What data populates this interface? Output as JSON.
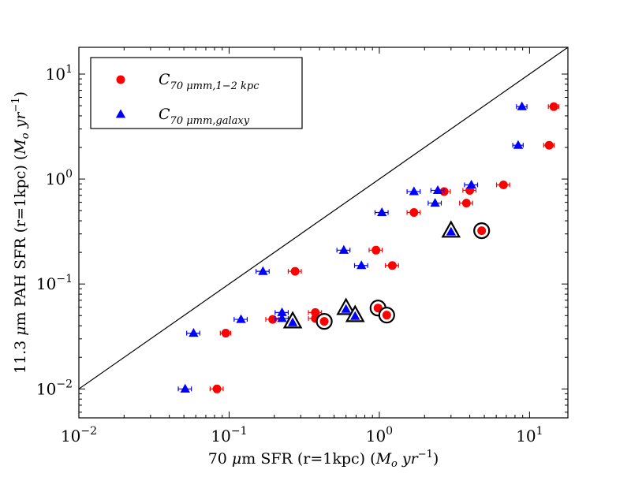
{
  "chart_data": {
    "type": "scatter",
    "xscale": "log",
    "yscale": "log",
    "xlim": [
      0.01,
      18
    ],
    "ylim": [
      0.0053,
      18
    ],
    "xlabel": {
      "pre": "70 ",
      "mu": "μ",
      "post": "m SFR (r=1kpc) (",
      "units": "M",
      "units_sub": "o",
      "units_mid": " yr",
      "units_sup": "−1",
      "close": ")"
    },
    "ylabel": {
      "pre": "11.3 ",
      "mu": "μ",
      "post": "m PAH SFR (r=1kpc) (",
      "units": "M",
      "units_sub": "o",
      "units_mid": " yr",
      "units_sup": "−1",
      "close": ")"
    },
    "x_ticks": [
      {
        "value": 0.01,
        "base": "10",
        "exp": "−2"
      },
      {
        "value": 0.1,
        "base": "10",
        "exp": "−1"
      },
      {
        "value": 1,
        "base": "10",
        "exp": "0"
      },
      {
        "value": 10,
        "base": "10",
        "exp": "1"
      }
    ],
    "y_ticks": [
      {
        "value": 0.01,
        "base": "10",
        "exp": "−2"
      },
      {
        "value": 0.1,
        "base": "10",
        "exp": "−1"
      },
      {
        "value": 1,
        "base": "10",
        "exp": "0"
      },
      {
        "value": 10,
        "base": "10",
        "exp": "1"
      }
    ],
    "reference_line": {
      "name": "one-to-one",
      "x": [
        0.01,
        18
      ],
      "y": [
        0.01,
        18
      ]
    },
    "legend": {
      "position": "top-left",
      "entries": [
        {
          "series": "c70-1-2kpc",
          "base": "C",
          "sub": "70 μmm,1−2 kpc"
        },
        {
          "series": "c70-galaxy",
          "base": "C",
          "sub": "70 μmm,galaxy"
        }
      ]
    },
    "series": [
      {
        "name": "C70 μmm,1-2 kpc",
        "id": "c70-1-2kpc",
        "marker": "circle",
        "color": "#ff0000",
        "points": [
          {
            "x": 0.083,
            "y": 0.01,
            "xerr": 0.1,
            "circled": false
          },
          {
            "x": 0.095,
            "y": 0.034,
            "xerr": 0.08,
            "circled": false
          },
          {
            "x": 0.195,
            "y": 0.046,
            "xerr": 0.1,
            "circled": false
          },
          {
            "x": 0.275,
            "y": 0.132,
            "xerr": 0.1,
            "circled": false
          },
          {
            "x": 0.375,
            "y": 0.0535,
            "xerr": 0.1,
            "circled": false
          },
          {
            "x": 0.375,
            "y": 0.047,
            "xerr": 0.1,
            "circled": false
          },
          {
            "x": 0.43,
            "y": 0.044,
            "xerr": 0.0,
            "circled": true
          },
          {
            "x": 0.95,
            "y": 0.21,
            "xerr": 0.1,
            "circled": false
          },
          {
            "x": 0.98,
            "y": 0.059,
            "xerr": 0.0,
            "circled": true
          },
          {
            "x": 1.12,
            "y": 0.0505,
            "xerr": 0.0,
            "circled": true
          },
          {
            "x": 1.22,
            "y": 0.15,
            "xerr": 0.1,
            "circled": false
          },
          {
            "x": 1.7,
            "y": 0.48,
            "xerr": 0.1,
            "circled": false
          },
          {
            "x": 2.7,
            "y": 0.76,
            "xerr": 0.1,
            "circled": false
          },
          {
            "x": 3.8,
            "y": 0.59,
            "xerr": 0.1,
            "circled": false
          },
          {
            "x": 4.0,
            "y": 0.78,
            "xerr": 0.1,
            "circled": false
          },
          {
            "x": 4.8,
            "y": 0.322,
            "xerr": 0.0,
            "circled": true
          },
          {
            "x": 6.7,
            "y": 0.88,
            "xerr": 0.1,
            "circled": false
          },
          {
            "x": 13.5,
            "y": 2.1,
            "xerr": 0.08,
            "circled": false
          },
          {
            "x": 14.5,
            "y": 4.9,
            "xerr": 0.08,
            "circled": false
          }
        ]
      },
      {
        "name": "C70 μmm,galaxy",
        "id": "c70-galaxy",
        "marker": "triangle",
        "color": "#0000ff",
        "points": [
          {
            "x": 0.051,
            "y": 0.01,
            "xerr": 0.1,
            "circled": false
          },
          {
            "x": 0.058,
            "y": 0.034,
            "xerr": 0.1,
            "circled": false
          },
          {
            "x": 0.12,
            "y": 0.046,
            "xerr": 0.1,
            "circled": false
          },
          {
            "x": 0.168,
            "y": 0.132,
            "xerr": 0.1,
            "circled": false
          },
          {
            "x": 0.225,
            "y": 0.0535,
            "xerr": 0.1,
            "circled": false
          },
          {
            "x": 0.225,
            "y": 0.047,
            "xerr": 0.1,
            "circled": false
          },
          {
            "x": 0.265,
            "y": 0.044,
            "xerr": 0.0,
            "circled": true
          },
          {
            "x": 0.58,
            "y": 0.21,
            "xerr": 0.1,
            "circled": false
          },
          {
            "x": 0.6,
            "y": 0.059,
            "xerr": 0.0,
            "circled": true
          },
          {
            "x": 0.69,
            "y": 0.0505,
            "xerr": 0.0,
            "circled": true
          },
          {
            "x": 0.76,
            "y": 0.15,
            "xerr": 0.1,
            "circled": false
          },
          {
            "x": 1.04,
            "y": 0.48,
            "xerr": 0.1,
            "circled": false
          },
          {
            "x": 1.7,
            "y": 0.76,
            "xerr": 0.1,
            "circled": false
          },
          {
            "x": 2.35,
            "y": 0.59,
            "xerr": 0.1,
            "circled": false
          },
          {
            "x": 2.45,
            "y": 0.78,
            "xerr": 0.1,
            "circled": false
          },
          {
            "x": 3.0,
            "y": 0.322,
            "xerr": 0.0,
            "circled": true
          },
          {
            "x": 4.1,
            "y": 0.88,
            "xerr": 0.1,
            "circled": false
          },
          {
            "x": 8.4,
            "y": 2.1,
            "xerr": 0.08,
            "circled": false
          },
          {
            "x": 8.9,
            "y": 4.9,
            "xerr": 0.08,
            "circled": false
          }
        ]
      }
    ]
  }
}
